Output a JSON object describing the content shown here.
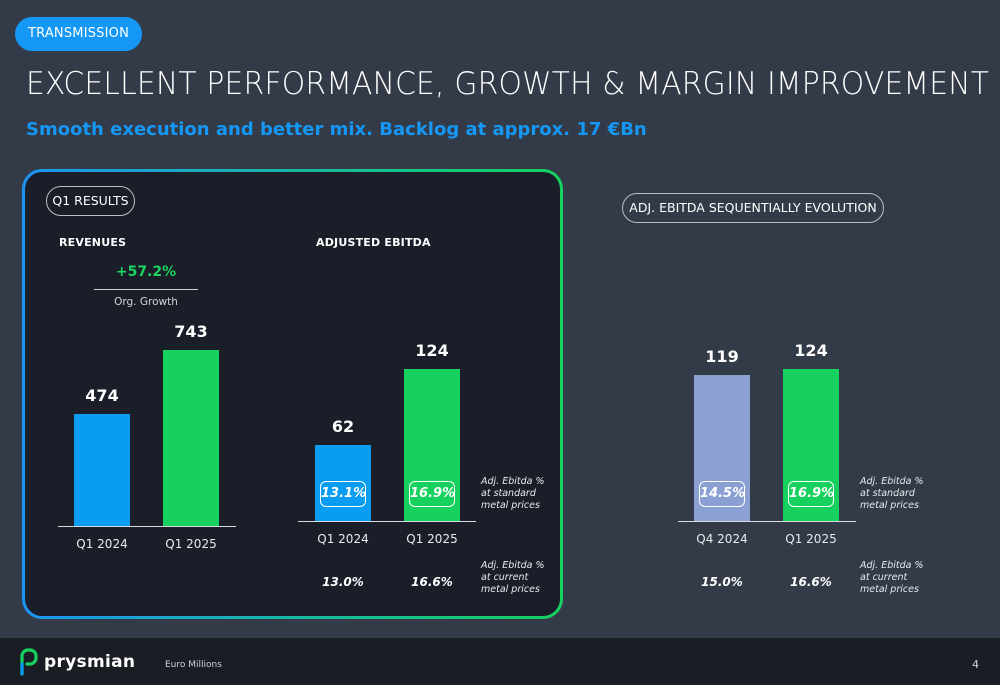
{
  "header": {
    "tag": "TRANSMISSION",
    "title": "EXCELLENT PERFORMANCE, GROWTH & MARGIN IMPROVEMENT",
    "subtitle": "Smooth execution and better mix. Backlog at approx. 17 €Bn"
  },
  "q1_panel": {
    "pill": "Q1 RESULTS",
    "growth": {
      "value": "+57.2%",
      "caption": "Org. Growth"
    }
  },
  "right_panel": {
    "pill": "ADJ. EBITDA SEQUENTIALLY EVOLUTION"
  },
  "notes": {
    "standard": [
      "Adj. Ebitda %",
      "at standard",
      "metal prices"
    ],
    "current": [
      "Adj. Ebitda %",
      "at current",
      "metal prices"
    ]
  },
  "chart_data": [
    {
      "type": "bar",
      "title": "REVENUES",
      "categories": [
        "Q1 2024",
        "Q1 2025"
      ],
      "values": [
        474,
        743
      ],
      "colors": [
        "#0a9cf0",
        "#16d15d"
      ]
    },
    {
      "type": "bar",
      "title": "ADJUSTED EBITDA",
      "categories": [
        "Q1 2024",
        "Q1 2025"
      ],
      "values": [
        62,
        124
      ],
      "margin_standard": [
        "13.1%",
        "16.9%"
      ],
      "margin_current": [
        "13.0%",
        "16.6%"
      ],
      "colors": [
        "#0a9cf0",
        "#16d15d"
      ]
    },
    {
      "type": "bar",
      "title": "ADJ. EBITDA SEQUENTIALLY EVOLUTION",
      "categories": [
        "Q4 2024",
        "Q1 2025"
      ],
      "values": [
        119,
        124
      ],
      "margin_standard": [
        "14.5%",
        "16.9%"
      ],
      "margin_current": [
        "15.0%",
        "16.6%"
      ],
      "colors": [
        "#8aa0d3",
        "#16d15d"
      ]
    }
  ],
  "footer": {
    "logo": "prysmian",
    "units": "Euro Millions",
    "page_number": "4"
  }
}
